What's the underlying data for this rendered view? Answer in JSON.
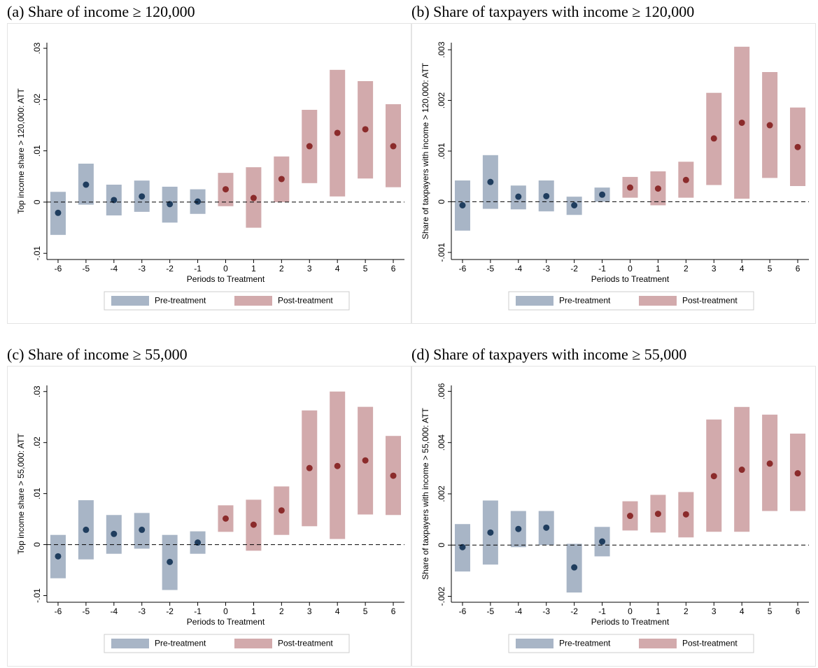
{
  "chart_data": [
    {
      "type": "errorbar",
      "title": "(a) Share of income ≥ 120,000",
      "x_label": "Periods to Treatment",
      "y_label": "Top income share > 120,000: ATT",
      "xlim": [
        -6.4,
        6.4
      ],
      "xticks": [
        -6,
        -5,
        -4,
        -3,
        -2,
        -1,
        0,
        1,
        2,
        3,
        4,
        5,
        6
      ],
      "ylim": [
        -0.0112,
        0.0311
      ],
      "yticks": [
        {
          "value": -0.01,
          "label": "-.01"
        },
        0,
        {
          "value": 0.01,
          "label": ".01"
        },
        {
          "value": 0.02,
          "label": ".02"
        },
        {
          "value": 0.03,
          "label": ".03"
        }
      ],
      "hline": 0,
      "grid": false,
      "series": [
        {
          "name": "Pre-treatment",
          "color": "#a8b5c6",
          "marker_color": "#1f3d5e",
          "x": [
            -6,
            -5,
            -4,
            -3,
            -2,
            -1
          ],
          "values": [
            -0.0021,
            0.0034,
            0.0004,
            0.0011,
            -0.0004,
            0.0001
          ],
          "lower": [
            -0.0064,
            -0.0005,
            -0.0026,
            -0.0019,
            -0.004,
            -0.0023
          ],
          "upper": [
            0.002,
            0.0075,
            0.0034,
            0.0042,
            0.003,
            0.0025
          ]
        },
        {
          "name": "Post-treatment",
          "color": "#d2aaac",
          "marker_color": "#8b2b2b",
          "x": [
            0,
            1,
            2,
            3,
            4,
            5,
            6
          ],
          "values": [
            0.0025,
            0.0008,
            0.0045,
            0.0109,
            0.0135,
            0.0142,
            0.0109
          ],
          "lower": [
            -0.0008,
            -0.005,
            0.0,
            0.0037,
            0.0011,
            0.0046,
            0.0029
          ],
          "upper": [
            0.0057,
            0.0068,
            0.0089,
            0.018,
            0.0258,
            0.0236,
            0.0191
          ]
        }
      ]
    },
    {
      "type": "errorbar",
      "title": "(b) Share of taxpayers with income ≥ 120,000",
      "x_label": "Periods to Treatment",
      "y_label": "Share of taxpayers with income > 120,000: ATT",
      "xlim": [
        -6.4,
        6.4
      ],
      "xticks": [
        -6,
        -5,
        -4,
        -3,
        -2,
        -1,
        0,
        1,
        2,
        3,
        4,
        5,
        6
      ],
      "ylim": [
        -0.00114,
        0.00314
      ],
      "yticks": [
        {
          "value": -0.001,
          "label": "-.001"
        },
        0,
        {
          "value": 0.001,
          "label": ".001"
        },
        {
          "value": 0.002,
          "label": ".002"
        },
        {
          "value": 0.003,
          "label": ".003"
        }
      ],
      "hline": 0,
      "grid": false,
      "series": [
        {
          "name": "Pre-treatment",
          "color": "#a8b5c6",
          "marker_color": "#1f3d5e",
          "x": [
            -6,
            -5,
            -4,
            -3,
            -2,
            -1
          ],
          "values": [
            -7e-05,
            0.00039,
            0.0001,
            0.00011,
            -7e-05,
            0.00014
          ],
          "lower": [
            -0.00057,
            -0.00014,
            -0.00015,
            -0.00019,
            -0.00026,
            0.0
          ],
          "upper": [
            0.00042,
            0.00092,
            0.00032,
            0.00042,
            0.0001,
            0.00028
          ]
        },
        {
          "name": "Post-treatment",
          "color": "#d2aaac",
          "marker_color": "#8b2b2b",
          "x": [
            0,
            1,
            2,
            3,
            4,
            5,
            6
          ],
          "values": [
            0.00028,
            0.00026,
            0.00043,
            0.00125,
            0.00156,
            0.00151,
            0.00108
          ],
          "lower": [
            8e-05,
            -7e-05,
            8e-05,
            0.00033,
            6e-05,
            0.00047,
            0.00031
          ],
          "upper": [
            0.00049,
            0.0006,
            0.00079,
            0.00215,
            0.00306,
            0.00256,
            0.00186
          ]
        }
      ]
    },
    {
      "type": "errorbar",
      "title": "(c) Share of income ≥ 55,000",
      "x_label": "Periods to Treatment",
      "y_label": "Top income share > 55,000: ATT",
      "xlim": [
        -6.4,
        6.4
      ],
      "xticks": [
        -6,
        -5,
        -4,
        -3,
        -2,
        -1,
        0,
        1,
        2,
        3,
        4,
        5,
        6
      ],
      "ylim": [
        -0.0113,
        0.0312
      ],
      "yticks": [
        {
          "value": -0.01,
          "label": "-.01"
        },
        0,
        {
          "value": 0.01,
          "label": ".01"
        },
        {
          "value": 0.02,
          "label": ".02"
        },
        {
          "value": 0.03,
          "label": ".03"
        }
      ],
      "hline": 0,
      "grid": false,
      "series": [
        {
          "name": "Pre-treatment",
          "color": "#a8b5c6",
          "marker_color": "#1f3d5e",
          "x": [
            -6,
            -5,
            -4,
            -3,
            -2,
            -1
          ],
          "values": [
            -0.0023,
            0.0029,
            0.0021,
            0.0029,
            -0.0034,
            0.0004
          ],
          "lower": [
            -0.0066,
            -0.0029,
            -0.0018,
            -0.0008,
            -0.0089,
            -0.0018
          ],
          "upper": [
            0.0019,
            0.0087,
            0.0058,
            0.0062,
            0.0019,
            0.0026
          ]
        },
        {
          "name": "Post-treatment",
          "color": "#d2aaac",
          "marker_color": "#8b2b2b",
          "x": [
            0,
            1,
            2,
            3,
            4,
            5,
            6
          ],
          "values": [
            0.0051,
            0.0039,
            0.0067,
            0.015,
            0.0154,
            0.0165,
            0.0135
          ],
          "lower": [
            0.0025,
            -0.0012,
            0.0019,
            0.0036,
            0.0011,
            0.0059,
            0.0058
          ],
          "upper": [
            0.0077,
            0.0088,
            0.0114,
            0.0263,
            0.03,
            0.027,
            0.0213
          ]
        }
      ]
    },
    {
      "type": "errorbar",
      "title": "(d) Share of taxpayers with income ≥ 55,000",
      "x_label": "Periods to Treatment",
      "y_label": "Share of taxpayers with income > 55,000: ATT",
      "xlim": [
        -6.4,
        6.4
      ],
      "xticks": [
        -6,
        -5,
        -4,
        -3,
        -2,
        -1,
        0,
        1,
        2,
        3,
        4,
        5,
        6
      ],
      "ylim": [
        -0.00223,
        0.00623
      ],
      "yticks": [
        {
          "value": -0.002,
          "label": "-.002"
        },
        0,
        {
          "value": 0.002,
          "label": ".002"
        },
        {
          "value": 0.004,
          "label": ".004"
        },
        {
          "value": 0.006,
          "label": ".006"
        }
      ],
      "hline": 0,
      "grid": false,
      "series": [
        {
          "name": "Pre-treatment",
          "color": "#a8b5c6",
          "marker_color": "#1f3d5e",
          "x": [
            -6,
            -5,
            -4,
            -3,
            -2,
            -1
          ],
          "values": [
            -8e-05,
            0.00049,
            0.00063,
            0.00068,
            -0.00087,
            0.00014
          ],
          "lower": [
            -0.00103,
            -0.00076,
            -8e-05,
            0.0,
            -0.00185,
            -0.00044
          ],
          "upper": [
            0.00082,
            0.00174,
            0.00133,
            0.00133,
            5e-05,
            0.00071
          ]
        },
        {
          "name": "Post-treatment",
          "color": "#d2aaac",
          "marker_color": "#8b2b2b",
          "x": [
            0,
            1,
            2,
            3,
            4,
            5,
            6
          ],
          "values": [
            0.00114,
            0.00122,
            0.0012,
            0.00269,
            0.00294,
            0.00318,
            0.0028
          ],
          "lower": [
            0.00057,
            0.00049,
            0.0003,
            0.00052,
            0.00052,
            0.00133,
            0.00133
          ],
          "upper": [
            0.00171,
            0.00196,
            0.00207,
            0.0049,
            0.00539,
            0.00509,
            0.00435
          ]
        }
      ]
    }
  ]
}
